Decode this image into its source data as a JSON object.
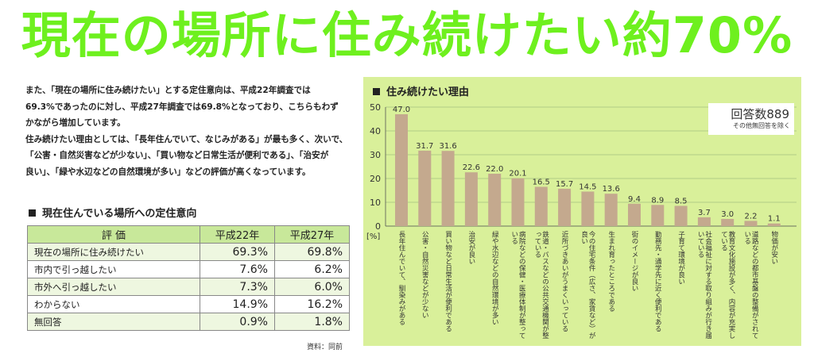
{
  "headline": "現在の場所に住み続けたい約70%",
  "intro": [
    "また、「現在の場所に住み続けたい」とする定住意向は、平成22年調査では",
    "69.3%であったのに対し、平成27年調査では69.8%となっており、こちらもわず",
    "かながら増加しています。",
    "住み続けたい理由としては、「長年住んでいて、なじみがある」が最も多く、次いで、",
    "「公害・自然災害などが少ない」、「買い物など日常生活が便利である」、「治安が",
    "良い」、「緑や水辺などの自然環境が多い」などの評価が高くなっています。"
  ],
  "table": {
    "title": "現在住んでいる場所への定住意向",
    "headers": [
      "評 価",
      "平成22年",
      "平成27年"
    ],
    "rows": [
      [
        "現在の場所に住み続けたい",
        "69.3%",
        "69.8%"
      ],
      [
        "市内で引っ越したい",
        "7.6%",
        "6.2%"
      ],
      [
        "市外へ引っ越したい",
        "7.3%",
        "6.0%"
      ],
      [
        "わからない",
        "14.9%",
        "16.2%"
      ],
      [
        "無回答",
        "0.9%",
        "1.8%"
      ]
    ],
    "source": "資料：同前"
  },
  "chart_data": {
    "type": "bar",
    "title": "住み続けたい理由",
    "ylabel": "[%]",
    "ylim": [
      0,
      50
    ],
    "yticks": [
      0,
      10,
      20,
      30,
      40,
      50
    ],
    "grid": true,
    "bar_color": "#c4a98e",
    "respondents": "回答数889",
    "respondents_note": "その他無回答を除く",
    "categories": [
      "長年住んでいて、馴染みがある",
      "公害・自然災害などが少ない",
      "買い物など日常生活が便利である",
      "治安が良い",
      "緑や水辺などの自然環境が多い",
      "病院などの保健・医療体制が整っている",
      "鉄道・バスなどの公共交通機関が整っている",
      "近所づきあいがうまくいっている",
      "今の住宅条件（広さ、家賃など）が良い",
      "生まれ育ったところである",
      "街のイメージが良い",
      "勤務先・通学先に近く便利である",
      "子育て環境が良い",
      "社会福祉に対する取り組みが行き届いている",
      "教育文化施設が多く、内容が充実している",
      "道路などの都市基盤の整備がされている",
      "物価が安い"
    ],
    "values": [
      47.0,
      31.7,
      31.6,
      22.6,
      22.0,
      20.1,
      16.5,
      15.7,
      14.5,
      13.6,
      9.4,
      8.9,
      8.5,
      3.7,
      3.0,
      2.2,
      1.1
    ],
    "value_labels": [
      "47.0",
      "31.7",
      "31.6",
      "22.6",
      "22.0",
      "20.1",
      "16.5",
      "15.7",
      "14.5",
      "13.6",
      "9.4",
      "8.9",
      "8.5",
      "3.7",
      "3.0",
      "2.2",
      "1.1"
    ]
  }
}
